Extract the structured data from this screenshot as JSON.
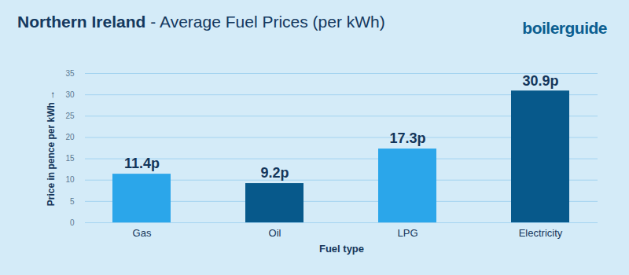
{
  "chart_data": {
    "type": "bar",
    "title": "Northern Ireland",
    "subtitle": "- Average Fuel Prices (per kWh)",
    "annotations": [
      "boilerguide"
    ],
    "x_label": "Fuel type",
    "y_label": "Price in pence per kWh",
    "categories": [
      "Gas",
      "Oil",
      "LPG",
      "Electricity"
    ],
    "values": [
      11.4,
      9.2,
      17.3,
      30.9
    ],
    "value_labels": [
      "11.4p",
      "9.2p",
      "17.3p",
      "30.9p"
    ],
    "colors": [
      "#2ba6ea",
      "#07598b",
      "#2ba6ea",
      "#07598b"
    ],
    "ylim": [
      0,
      35
    ],
    "yticks": [
      0,
      5,
      10,
      15,
      20,
      25,
      30,
      35
    ],
    "grid": true,
    "data_labels": true
  }
}
